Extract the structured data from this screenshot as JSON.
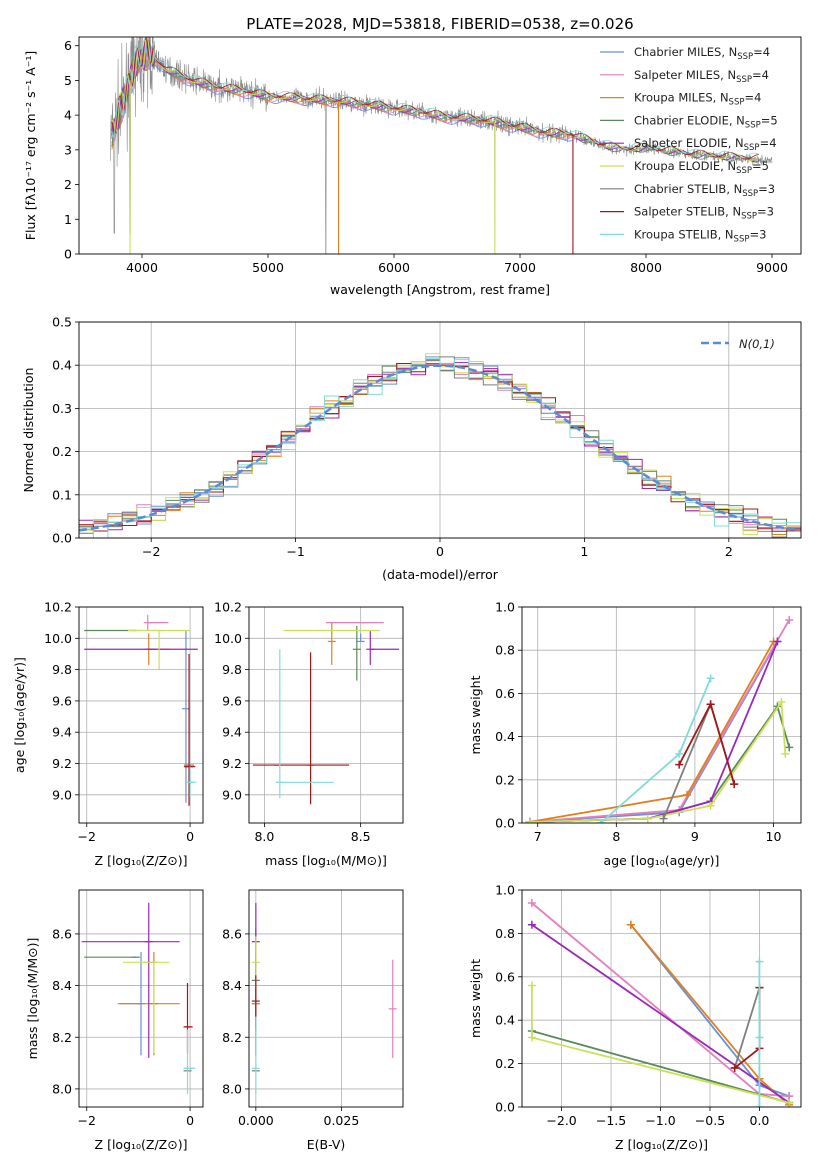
{
  "colors": {
    "Chabrier MILES": "#6b8fd8",
    "Salpeter MILES": "#e47fbd",
    "Kroupa MILES": "#e0801e",
    "Chabrier ELODIE": "#5a8a5a",
    "Salpeter ELODIE": "#9a28b8",
    "Kroupa ELODIE": "#cbe05a",
    "Chabrier STELIB": "#7f7f7f",
    "Salpeter STELIB": "#a01818",
    "Kroupa STELIB": "#80dcd8"
  },
  "chart_data": [
    {
      "type": "line",
      "id": "spectrum",
      "title": "PLATE=2028, MJD=53818, FIBERID=0538, z=0.026",
      "xlabel": "wavelength [Angstrom, rest frame]",
      "ylabel": "Flux [fλ10⁻¹⁷ erg cm⁻² s⁻¹ A⁻¹]",
      "xlim": [
        3500,
        9230
      ],
      "ylim": [
        0,
        6.25
      ],
      "xticks": [
        4000,
        5000,
        6000,
        7000,
        8000,
        9000
      ],
      "yticks": [
        0,
        1,
        2,
        3,
        4,
        5,
        6
      ],
      "continuum": [
        [
          3750,
          3.3
        ],
        [
          3850,
          4.4
        ],
        [
          3950,
          5.5
        ],
        [
          4050,
          5.8
        ],
        [
          4200,
          5.3
        ],
        [
          4400,
          5.0
        ],
        [
          4600,
          4.8
        ],
        [
          4800,
          4.7
        ],
        [
          5000,
          4.55
        ],
        [
          5200,
          4.5
        ],
        [
          5400,
          4.45
        ],
        [
          5600,
          4.4
        ],
        [
          5800,
          4.3
        ],
        [
          6000,
          4.2
        ],
        [
          6200,
          4.1
        ],
        [
          6400,
          3.95
        ],
        [
          6600,
          3.9
        ],
        [
          6800,
          3.8
        ],
        [
          7000,
          3.65
        ],
        [
          7200,
          3.5
        ],
        [
          7400,
          3.45
        ],
        [
          7600,
          3.2
        ],
        [
          7800,
          3.0
        ],
        [
          8000,
          3.05
        ],
        [
          8200,
          2.95
        ],
        [
          8400,
          2.85
        ],
        [
          8600,
          2.8
        ],
        [
          8800,
          2.75
        ],
        [
          9000,
          2.7
        ]
      ],
      "legend": [
        {
          "name": "Chabrier MILES, N",
          "sub": "SSP",
          "tail": "=4"
        },
        {
          "name": "Salpeter MILES, N",
          "sub": "SSP",
          "tail": "=4"
        },
        {
          "name": "Kroupa MILES, N",
          "sub": "SSP",
          "tail": "=4"
        },
        {
          "name": "Chabrier ELODIE, N",
          "sub": "SSP",
          "tail": "=5"
        },
        {
          "name": "Salpeter ELODIE, N",
          "sub": "SSP",
          "tail": "=4"
        },
        {
          "name": "Kroupa ELODIE, N",
          "sub": "SSP",
          "tail": "=5"
        },
        {
          "name": "Chabrier STELIB, N",
          "sub": "SSP",
          "tail": "=3"
        },
        {
          "name": "Salpeter STELIB, N",
          "sub": "SSP",
          "tail": "=3"
        },
        {
          "name": "Kroupa STELIB, N",
          "sub": "SSP",
          "tail": "=3"
        }
      ],
      "legend_placement": "upper right"
    },
    {
      "type": "step",
      "id": "residuals",
      "xlabel": "(data-model)/error",
      "ylabel": "Normed distribution",
      "xlim": [
        -2.5,
        2.5
      ],
      "ylim": [
        0,
        0.5
      ],
      "xticks": [
        -2,
        -1,
        0,
        1,
        2
      ],
      "yticks": [
        0.0,
        0.1,
        0.2,
        0.3,
        0.4,
        0.5
      ],
      "grid": true,
      "legend_label": "N(0,1)",
      "legend_placement": "upper right"
    },
    {
      "type": "errorbar",
      "id": "age_vs_Z",
      "xlabel": "Z [log₁₀(Z/Z⊙)]",
      "ylabel": "age  [log₁₀(age/yr)]",
      "xlim": [
        -2.15,
        0.25
      ],
      "ylim": [
        8.82,
        10.2
      ],
      "xticks": [
        -2,
        0
      ],
      "yticks": [
        9.0,
        9.2,
        9.4,
        9.6,
        9.8,
        10.0,
        10.2
      ],
      "grid": true,
      "points": [
        {
          "model": "Chabrier MILES",
          "x": -0.08,
          "xerr": [
            0.0,
            0.0
          ],
          "y": 9.55,
          "yerr": [
            0.6,
            0.5
          ]
        },
        {
          "model": "Salpeter MILES",
          "x": -0.82,
          "xerr": [
            0.0,
            0.4
          ],
          "y": 10.1,
          "yerr": [
            0.05,
            0.05
          ]
        },
        {
          "model": "Kroupa MILES",
          "x": -0.8,
          "xerr": [
            0.0,
            0.4
          ],
          "y": 9.93,
          "yerr": [
            0.1,
            0.1
          ]
        },
        {
          "model": "Chabrier ELODIE",
          "x": -1.05,
          "xerr": [
            1.0,
            0.0
          ],
          "y": 10.05,
          "yerr": [
            0.0,
            0.0
          ]
        },
        {
          "model": "Salpeter ELODIE",
          "x": -0.75,
          "xerr": [
            1.3,
            0.9
          ],
          "y": 9.93,
          "yerr": [
            0.0,
            0.0
          ]
        },
        {
          "model": "Kroupa ELODIE",
          "x": -0.6,
          "xerr": [
            0.6,
            0.6
          ],
          "y": 10.05,
          "yerr": [
            0.25,
            0.0
          ]
        },
        {
          "model": "Chabrier STELIB",
          "x": 0.0,
          "xerr": [
            0.12,
            0.0
          ],
          "y": 9.19,
          "yerr": [
            0.0,
            0.0
          ]
        },
        {
          "model": "Salpeter STELIB",
          "x": -0.02,
          "xerr": [
            0.1,
            0.12
          ],
          "y": 9.18,
          "yerr": [
            0.25,
            0.72
          ]
        },
        {
          "model": "Kroupa STELIB",
          "x": 0.0,
          "xerr": [
            0.0,
            0.12
          ],
          "y": 9.08,
          "yerr": [
            0.1,
            0.1
          ]
        }
      ]
    },
    {
      "type": "errorbar",
      "id": "age_vs_mass",
      "xlabel": "mass [log₁₀(M/M⊙)]",
      "xlim": [
        7.92,
        8.72
      ],
      "ylim": [
        8.82,
        10.2
      ],
      "xticks": [
        8.0,
        8.5
      ],
      "yticks": [
        9.0,
        9.2,
        9.4,
        9.6,
        9.8,
        10.0,
        10.2
      ],
      "grid": true,
      "points": [
        {
          "model": "Chabrier MILES",
          "x": 8.5,
          "xerr": [
            0.0,
            0.0
          ],
          "y": 9.98,
          "yerr": [
            0.0,
            0.05
          ]
        },
        {
          "model": "Salpeter MILES",
          "x": 8.52,
          "xerr": [
            0.2,
            0.1
          ],
          "y": 10.1,
          "yerr": [
            0.0,
            0.0
          ]
        },
        {
          "model": "Kroupa MILES",
          "x": 8.35,
          "xerr": [
            0.0,
            0.0
          ],
          "y": 9.98,
          "yerr": [
            0.15,
            0.12
          ]
        },
        {
          "model": "Chabrier ELODIE",
          "x": 8.48,
          "xerr": [
            0.0,
            0.0
          ],
          "y": 9.93,
          "yerr": [
            0.2,
            0.15
          ]
        },
        {
          "model": "Salpeter ELODIE",
          "x": 8.55,
          "xerr": [
            0.0,
            0.15
          ],
          "y": 9.93,
          "yerr": [
            0.1,
            0.12
          ]
        },
        {
          "model": "Kroupa ELODIE",
          "x": 8.3,
          "xerr": [
            0.2,
            0.3
          ],
          "y": 10.05,
          "yerr": [
            0.0,
            0.0
          ]
        },
        {
          "model": "Chabrier STELIB",
          "x": 8.07,
          "xerr": [
            0.0,
            0.0
          ],
          "y": 9.19,
          "yerr": [
            0.0,
            0.0
          ]
        },
        {
          "model": "Salpeter STELIB",
          "x": 8.24,
          "xerr": [
            0.3,
            0.2
          ],
          "y": 9.19,
          "yerr": [
            0.25,
            0.72
          ]
        },
        {
          "model": "Kroupa STELIB",
          "x": 8.08,
          "xerr": [
            0.0,
            0.28
          ],
          "y": 9.08,
          "yerr": [
            0.1,
            0.85
          ]
        }
      ]
    },
    {
      "type": "line",
      "id": "weight_vs_age",
      "xlabel": "age  [log₁₀(age/yr)]",
      "ylabel": "mass weight",
      "xlim": [
        6.8,
        10.35
      ],
      "ylim": [
        0,
        1.0
      ],
      "xticks": [
        7,
        8,
        9,
        10
      ],
      "yticks": [
        0.0,
        0.2,
        0.4,
        0.6,
        0.8,
        1.0
      ],
      "grid": true,
      "series": [
        {
          "name": "Chabrier MILES",
          "x": [
            6.9,
            8.8,
            10.05
          ],
          "y": [
            0.005,
            0.05,
            0.84
          ]
        },
        {
          "name": "Salpeter MILES",
          "x": [
            6.9,
            8.8,
            10.2
          ],
          "y": [
            0.005,
            0.06,
            0.94
          ]
        },
        {
          "name": "Kroupa MILES",
          "x": [
            6.9,
            8.9,
            10.0
          ],
          "y": [
            0.005,
            0.13,
            0.84
          ]
        },
        {
          "name": "Chabrier ELODIE",
          "x": [
            6.9,
            8.4,
            9.2,
            10.05,
            10.2
          ],
          "y": [
            0.005,
            0.02,
            0.1,
            0.54,
            0.35
          ]
        },
        {
          "name": "Salpeter ELODIE",
          "x": [
            6.9,
            8.4,
            9.2,
            10.05
          ],
          "y": [
            0.005,
            0.02,
            0.1,
            0.84
          ]
        },
        {
          "name": "Kroupa ELODIE",
          "x": [
            6.9,
            8.4,
            9.2,
            10.1,
            10.15
          ],
          "y": [
            0.005,
            0.02,
            0.08,
            0.56,
            0.32
          ]
        },
        {
          "name": "Chabrier STELIB",
          "x": [
            8.6,
            9.2,
            9.5
          ],
          "y": [
            0.02,
            0.55,
            0.18
          ]
        },
        {
          "name": "Salpeter STELIB",
          "x": [
            8.8,
            9.2,
            9.5
          ],
          "y": [
            0.27,
            0.55,
            0.18
          ]
        },
        {
          "name": "Kroupa STELIB",
          "x": [
            7.8,
            8.8,
            9.2
          ],
          "y": [
            0.0,
            0.32,
            0.67
          ]
        }
      ]
    },
    {
      "type": "errorbar",
      "id": "mass_vs_Z",
      "xlabel": "Z [log₁₀(Z/Z⊙)]",
      "ylabel": "mass [log₁₀(M/M⊙)]",
      "xlim": [
        -2.15,
        0.25
      ],
      "ylim": [
        7.93,
        8.77
      ],
      "xticks": [
        -2,
        0
      ],
      "yticks": [
        8.0,
        8.2,
        8.4,
        8.6
      ],
      "grid": true,
      "points": [
        {
          "model": "Chabrier MILES",
          "x": -0.95,
          "xerr": [
            0.4,
            0.0
          ],
          "y": 8.33,
          "yerr": [
            0.2,
            0.2
          ]
        },
        {
          "model": "Salpeter MILES",
          "x": -0.82,
          "xerr": [
            0.0,
            0.15
          ],
          "y": 8.49,
          "yerr": [
            0.0,
            0.0
          ]
        },
        {
          "model": "Kroupa MILES",
          "x": -0.7,
          "xerr": [
            0.7,
            0.5
          ],
          "y": 8.33,
          "yerr": [
            0.2,
            0.2
          ]
        },
        {
          "model": "Chabrier ELODIE",
          "x": -1.05,
          "xerr": [
            1.0,
            0.0
          ],
          "y": 8.51,
          "yerr": [
            0.0,
            0.0
          ]
        },
        {
          "model": "Salpeter ELODIE",
          "x": -0.8,
          "xerr": [
            1.3,
            0.6
          ],
          "y": 8.57,
          "yerr": [
            0.45,
            0.15
          ]
        },
        {
          "model": "Kroupa ELODIE",
          "x": -0.7,
          "xerr": [
            0.6,
            0.3
          ],
          "y": 8.49,
          "yerr": [
            0.35,
            0.0
          ]
        },
        {
          "model": "Chabrier STELIB",
          "x": -0.05,
          "xerr": [
            0.0,
            0.0
          ],
          "y": 8.07,
          "yerr": [
            0.0,
            0.0
          ]
        },
        {
          "model": "Salpeter STELIB",
          "x": -0.05,
          "xerr": [
            0.05,
            0.1
          ],
          "y": 8.24,
          "yerr": [
            0.1,
            0.17
          ]
        },
        {
          "model": "Kroupa STELIB",
          "x": -0.05,
          "xerr": [
            0.05,
            0.15
          ],
          "y": 8.08,
          "yerr": [
            0.1,
            0.15
          ]
        }
      ]
    },
    {
      "type": "errorbar",
      "id": "mass_vs_EBV",
      "xlabel": "E(B-V)",
      "xlim": [
        -0.002,
        0.043
      ],
      "ylim": [
        7.93,
        8.77
      ],
      "xticks": [
        0.0,
        0.025
      ],
      "yticks": [
        8.0,
        8.2,
        8.4,
        8.6
      ],
      "grid": true,
      "points": [
        {
          "model": "Chabrier MILES",
          "x": 0.0,
          "y": 8.33,
          "yerr": [
            0.2,
            0.2
          ]
        },
        {
          "model": "Salpeter MILES",
          "x": 0.04,
          "y": 8.31,
          "yerr": [
            0.19,
            0.19
          ]
        },
        {
          "model": "Kroupa MILES",
          "x": 0.0,
          "y": 8.33,
          "yerr": [
            0.2,
            0.2
          ]
        },
        {
          "model": "Chabrier ELODIE",
          "x": 0.0,
          "y": 8.42,
          "yerr": [
            0.2,
            0.2
          ]
        },
        {
          "model": "Salpeter ELODIE",
          "x": 0.0,
          "y": 8.57,
          "yerr": [
            0.15,
            0.15
          ]
        },
        {
          "model": "Kroupa ELODIE",
          "x": 0.0,
          "y": 8.49,
          "yerr": [
            0.1,
            0.1
          ]
        },
        {
          "model": "Chabrier STELIB",
          "x": 0.0,
          "y": 8.07,
          "yerr": [
            0.0,
            0.0
          ]
        },
        {
          "model": "Salpeter STELIB",
          "x": 0.0,
          "y": 8.34,
          "yerr": [
            0.1,
            0.1
          ]
        },
        {
          "model": "Kroupa STELIB",
          "x": 0.0,
          "y": 8.08,
          "yerr": [
            0.1,
            0.2
          ]
        }
      ]
    },
    {
      "type": "line",
      "id": "weight_vs_Z",
      "xlabel": "Z [log₁₀(Z/Z⊙)]",
      "ylabel": "mass weight",
      "xlim": [
        -2.4,
        0.42
      ],
      "ylim": [
        0,
        1.0
      ],
      "xticks": [
        -2.0,
        -1.5,
        -1.0,
        -0.5,
        0.0
      ],
      "yticks": [
        0.0,
        0.2,
        0.4,
        0.6,
        0.8,
        1.0
      ],
      "grid": true,
      "series": [
        {
          "name": "Chabrier MILES",
          "x": [
            -1.3,
            0.0,
            0.3
          ],
          "y": [
            0.84,
            0.1,
            0.05
          ]
        },
        {
          "name": "Salpeter MILES",
          "x": [
            -2.3,
            0.0,
            0.3
          ],
          "y": [
            0.94,
            0.06,
            0.05
          ]
        },
        {
          "name": "Kroupa MILES",
          "x": [
            -1.3,
            0.0,
            0.3
          ],
          "y": [
            0.84,
            0.13,
            0.01
          ]
        },
        {
          "name": "Chabrier ELODIE",
          "x": [
            -2.3,
            0.3
          ],
          "y": [
            0.35,
            0.02
          ]
        },
        {
          "name": "Salpeter ELODIE",
          "x": [
            -2.3,
            0.3
          ],
          "y": [
            0.84,
            0.02
          ]
        },
        {
          "name": "Kroupa ELODIE",
          "x": [
            -2.3,
            -2.3,
            0.3
          ],
          "y": [
            0.56,
            0.32,
            0.02
          ]
        },
        {
          "name": "Chabrier STELIB",
          "x": [
            -0.25,
            0.0
          ],
          "y": [
            0.18,
            0.55
          ]
        },
        {
          "name": "Salpeter STELIB",
          "x": [
            -0.25,
            0.0,
            0.0
          ],
          "y": [
            0.18,
            0.27,
            0.55
          ]
        },
        {
          "name": "Kroupa STELIB",
          "x": [
            0.0,
            0.0,
            0.0
          ],
          "y": [
            0.0,
            0.32,
            0.67
          ]
        }
      ]
    }
  ]
}
